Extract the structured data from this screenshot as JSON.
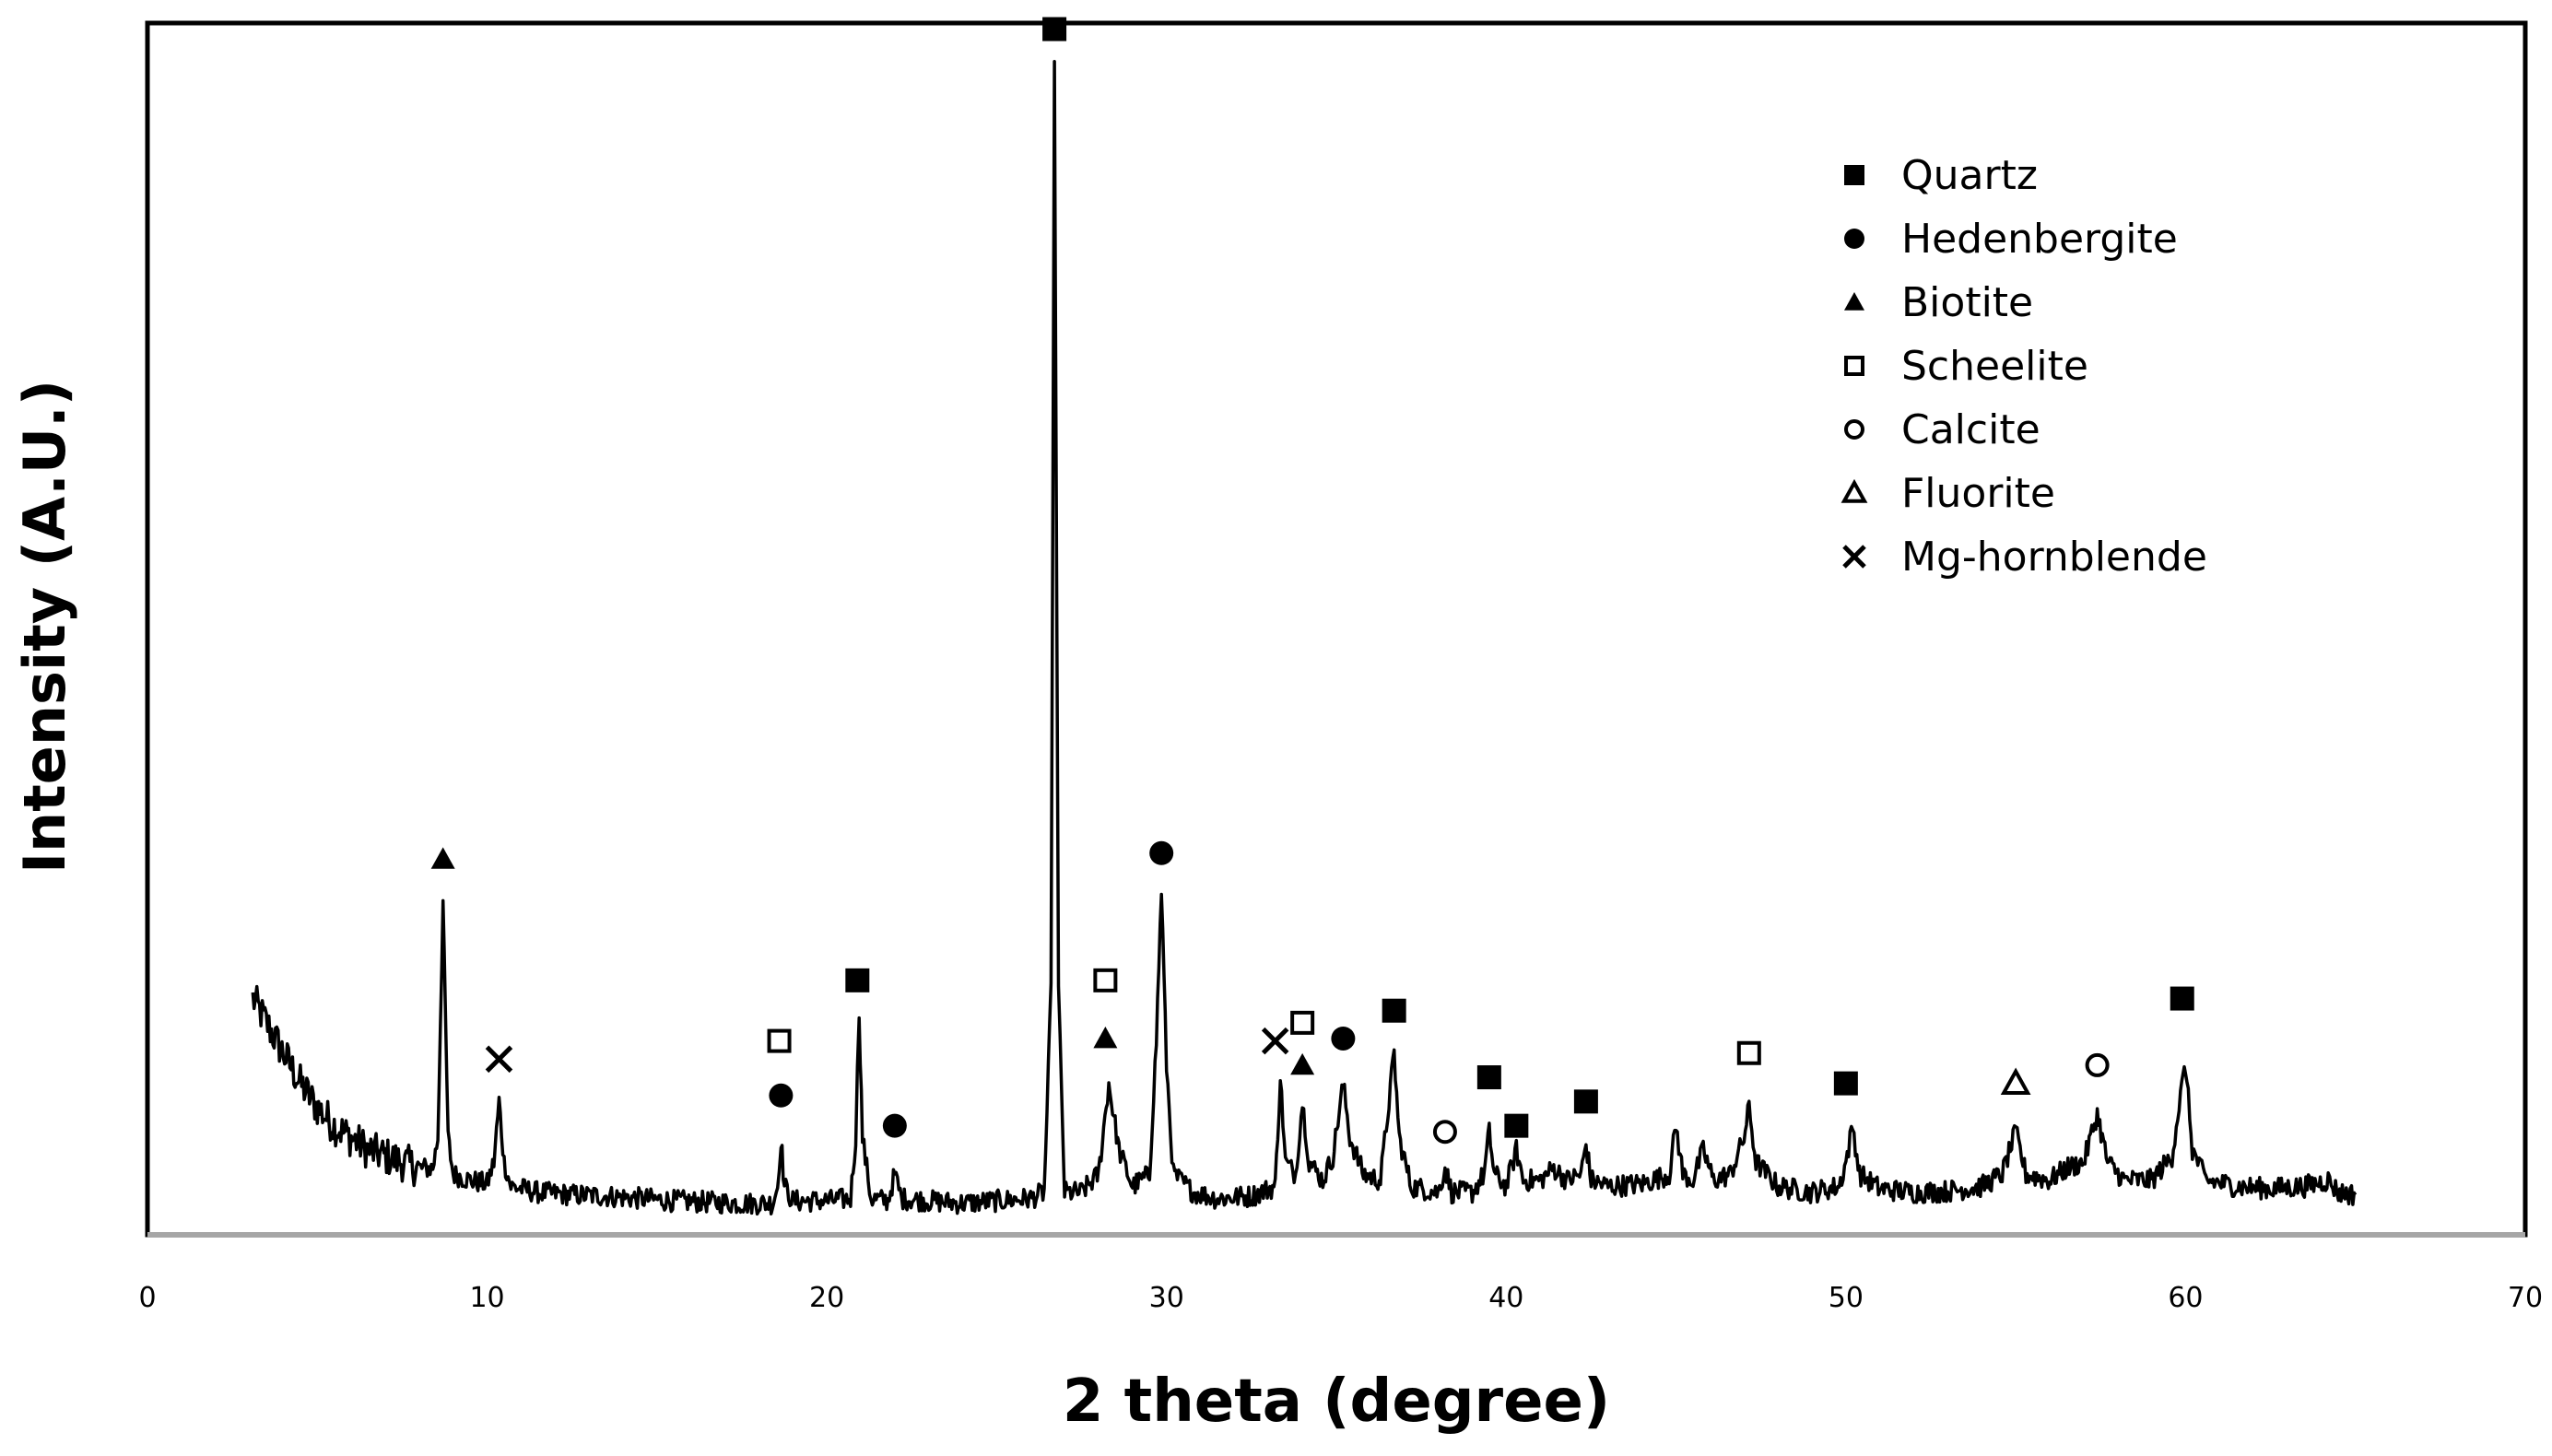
{
  "chart_data": {
    "type": "line",
    "title": "",
    "xlabel": "2 theta (degree)",
    "ylabel": "Intensity (A.U.)",
    "xlim": [
      0,
      70
    ],
    "ylim": [
      0,
      100
    ],
    "x_ticks": [
      0,
      10,
      20,
      30,
      40,
      50,
      60,
      70
    ],
    "y_ticks": [],
    "grid": false,
    "legend_position": "top-right",
    "series": [
      {
        "color": "#000000",
        "points": [
          [
            3.1,
            19.5
          ],
          [
            3.5,
            17.5
          ],
          [
            4.0,
            15.0
          ],
          [
            4.5,
            12.5
          ],
          [
            5.0,
            10.5
          ],
          [
            5.5,
            9.0
          ],
          [
            6.0,
            8.0
          ],
          [
            6.5,
            7.0
          ],
          [
            7.0,
            6.5
          ],
          [
            7.5,
            6.0
          ],
          [
            8.0,
            5.5
          ],
          [
            8.4,
            5.5
          ],
          [
            8.55,
            8.0
          ],
          [
            8.7,
            27.5
          ],
          [
            8.85,
            8.0
          ],
          [
            9.0,
            5.0
          ],
          [
            9.5,
            4.5
          ],
          [
            10.0,
            4.2
          ],
          [
            10.2,
            6.0
          ],
          [
            10.35,
            11.0
          ],
          [
            10.5,
            6.0
          ],
          [
            10.7,
            4.0
          ],
          [
            11.5,
            3.5
          ],
          [
            12.5,
            3.3
          ],
          [
            13.5,
            3.2
          ],
          [
            14.5,
            3.0
          ],
          [
            15.5,
            2.8
          ],
          [
            16.5,
            2.7
          ],
          [
            17.5,
            2.6
          ],
          [
            18.4,
            2.6
          ],
          [
            18.55,
            4.0
          ],
          [
            18.65,
            8.0
          ],
          [
            18.75,
            4.0
          ],
          [
            19.0,
            2.8
          ],
          [
            20.0,
            2.8
          ],
          [
            20.7,
            3.0
          ],
          [
            20.85,
            8.0
          ],
          [
            20.95,
            18.5
          ],
          [
            21.05,
            8.0
          ],
          [
            21.3,
            3.0
          ],
          [
            21.8,
            2.8
          ],
          [
            22.0,
            5.0
          ],
          [
            22.2,
            3.0
          ],
          [
            23.0,
            2.8
          ],
          [
            24.0,
            2.6
          ],
          [
            25.0,
            2.8
          ],
          [
            26.0,
            3.0
          ],
          [
            26.4,
            3.5
          ],
          [
            26.6,
            20.0
          ],
          [
            26.7,
            96.0
          ],
          [
            26.82,
            20.0
          ],
          [
            27.0,
            3.5
          ],
          [
            27.5,
            3.5
          ],
          [
            28.0,
            5.0
          ],
          [
            28.3,
            12.5
          ],
          [
            28.6,
            7.0
          ],
          [
            29.0,
            4.0
          ],
          [
            29.5,
            5.0
          ],
          [
            29.7,
            16.0
          ],
          [
            29.85,
            28.5
          ],
          [
            30.0,
            14.0
          ],
          [
            30.2,
            5.0
          ],
          [
            30.8,
            3.5
          ],
          [
            31.5,
            3.0
          ],
          [
            32.5,
            3.2
          ],
          [
            33.2,
            4.0
          ],
          [
            33.35,
            13.0
          ],
          [
            33.5,
            6.0
          ],
          [
            33.8,
            5.0
          ],
          [
            34.0,
            11.0
          ],
          [
            34.2,
            6.0
          ],
          [
            34.6,
            4.5
          ],
          [
            34.9,
            6.5
          ],
          [
            35.2,
            12.5
          ],
          [
            35.4,
            8.0
          ],
          [
            35.8,
            5.0
          ],
          [
            36.3,
            4.5
          ],
          [
            36.55,
            11.0
          ],
          [
            36.7,
            15.0
          ],
          [
            36.85,
            8.0
          ],
          [
            37.2,
            4.0
          ],
          [
            38.0,
            3.5
          ],
          [
            38.2,
            5.5
          ],
          [
            38.4,
            3.5
          ],
          [
            39.0,
            3.5
          ],
          [
            39.35,
            5.0
          ],
          [
            39.5,
            8.5
          ],
          [
            39.65,
            5.0
          ],
          [
            40.0,
            4.0
          ],
          [
            40.3,
            7.0
          ],
          [
            40.5,
            4.5
          ],
          [
            41.0,
            4.5
          ],
          [
            41.4,
            5.5
          ],
          [
            41.8,
            4.5
          ],
          [
            42.2,
            5.0
          ],
          [
            42.35,
            7.5
          ],
          [
            42.5,
            4.5
          ],
          [
            43.0,
            4.0
          ],
          [
            44.0,
            4.2
          ],
          [
            44.8,
            5.0
          ],
          [
            45.0,
            9.0
          ],
          [
            45.2,
            5.0
          ],
          [
            45.5,
            4.5
          ],
          [
            45.8,
            7.0
          ],
          [
            46.1,
            4.5
          ],
          [
            46.6,
            5.0
          ],
          [
            47.0,
            8.0
          ],
          [
            47.15,
            10.5
          ],
          [
            47.35,
            6.0
          ],
          [
            48.0,
            4.0
          ],
          [
            49.0,
            3.5
          ],
          [
            49.8,
            4.0
          ],
          [
            50.0,
            6.0
          ],
          [
            50.2,
            9.0
          ],
          [
            50.4,
            5.0
          ],
          [
            51.0,
            3.8
          ],
          [
            52.0,
            3.5
          ],
          [
            53.0,
            3.6
          ],
          [
            54.0,
            4.0
          ],
          [
            54.6,
            5.0
          ],
          [
            55.0,
            8.5
          ],
          [
            55.3,
            5.0
          ],
          [
            56.0,
            4.5
          ],
          [
            56.5,
            5.5
          ],
          [
            57.0,
            6.0
          ],
          [
            57.4,
            10.0
          ],
          [
            57.7,
            6.0
          ],
          [
            58.2,
            4.5
          ],
          [
            59.0,
            4.5
          ],
          [
            59.6,
            6.5
          ],
          [
            59.85,
            11.5
          ],
          [
            60.0,
            14.0
          ],
          [
            60.2,
            7.0
          ],
          [
            60.6,
            4.5
          ],
          [
            61.5,
            4.0
          ],
          [
            62.5,
            3.8
          ],
          [
            63.5,
            4.0
          ],
          [
            64.2,
            4.5
          ],
          [
            64.5,
            3.5
          ],
          [
            65.0,
            3.3
          ]
        ]
      }
    ],
    "legend": [
      {
        "label": "Quartz",
        "marker": "filled-square"
      },
      {
        "label": "Hedenbergite",
        "marker": "filled-circle"
      },
      {
        "label": "Biotite",
        "marker": "filled-triangle"
      },
      {
        "label": "Scheelite",
        "marker": "open-square"
      },
      {
        "label": "Calcite",
        "marker": "open-circle"
      },
      {
        "label": "Fluorite",
        "marker": "open-triangle"
      },
      {
        "label": "Mg-hornblende",
        "marker": "cross"
      }
    ],
    "annotations": [
      {
        "phase": "Biotite",
        "marker": "filled-triangle",
        "x": 8.7,
        "y": 31.0
      },
      {
        "phase": "Mg-hornblende",
        "marker": "cross",
        "x": 10.35,
        "y": 14.5
      },
      {
        "phase": "Scheelite",
        "marker": "open-square",
        "x": 18.6,
        "y": 16.0
      },
      {
        "phase": "Hedenbergite",
        "marker": "filled-circle",
        "x": 18.65,
        "y": 11.5
      },
      {
        "phase": "Quartz",
        "marker": "filled-square",
        "x": 20.9,
        "y": 21.0
      },
      {
        "phase": "Hedenbergite",
        "marker": "filled-circle",
        "x": 22.0,
        "y": 9.0
      },
      {
        "phase": "Quartz",
        "marker": "filled-square",
        "x": 26.7,
        "y": 99.5
      },
      {
        "phase": "Scheelite",
        "marker": "open-square",
        "x": 28.2,
        "y": 21.0
      },
      {
        "phase": "Biotite",
        "marker": "filled-triangle",
        "x": 28.2,
        "y": 16.2
      },
      {
        "phase": "Hedenbergite",
        "marker": "filled-circle",
        "x": 29.85,
        "y": 31.5
      },
      {
        "phase": "Mg-hornblende",
        "marker": "cross",
        "x": 33.2,
        "y": 16.0
      },
      {
        "phase": "Scheelite",
        "marker": "open-square",
        "x": 34.0,
        "y": 17.5
      },
      {
        "phase": "Biotite",
        "marker": "filled-triangle",
        "x": 34.0,
        "y": 14.0
      },
      {
        "phase": "Hedenbergite",
        "marker": "filled-circle",
        "x": 35.2,
        "y": 16.2
      },
      {
        "phase": "Quartz",
        "marker": "filled-square",
        "x": 36.7,
        "y": 18.5
      },
      {
        "phase": "Calcite",
        "marker": "open-circle",
        "x": 38.2,
        "y": 8.5
      },
      {
        "phase": "Quartz",
        "marker": "filled-square",
        "x": 39.5,
        "y": 13.0
      },
      {
        "phase": "Quartz",
        "marker": "filled-square",
        "x": 40.3,
        "y": 9.0
      },
      {
        "phase": "Quartz",
        "marker": "filled-square",
        "x": 42.35,
        "y": 11.0
      },
      {
        "phase": "Scheelite",
        "marker": "open-square",
        "x": 47.15,
        "y": 15.0
      },
      {
        "phase": "Quartz",
        "marker": "filled-square",
        "x": 50.0,
        "y": 12.5
      },
      {
        "phase": "Fluorite",
        "marker": "open-triangle",
        "x": 55.0,
        "y": 12.5
      },
      {
        "phase": "Calcite",
        "marker": "open-circle",
        "x": 57.4,
        "y": 14.0
      },
      {
        "phase": "Quartz",
        "marker": "filled-square",
        "x": 59.9,
        "y": 19.5
      }
    ]
  }
}
